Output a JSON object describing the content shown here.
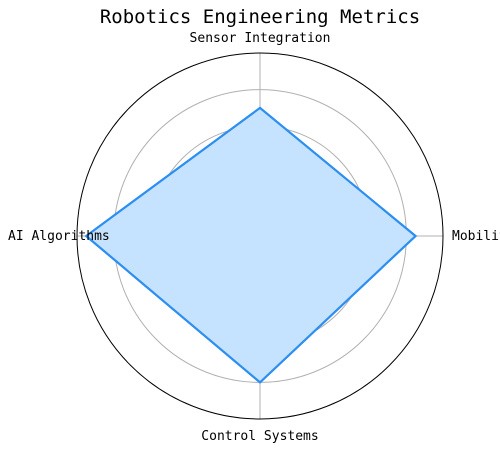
{
  "chart_data": {
    "type": "radar",
    "title": "Robotics Engineering Metrics",
    "categories": [
      "Mobility",
      "Sensor Integration",
      "AI Algorithms",
      "Control Systems"
    ],
    "values": [
      85,
      70,
      95,
      80
    ],
    "rlim": [
      0,
      100
    ],
    "grid_levels": [
      20,
      40,
      60,
      80
    ],
    "grid": true,
    "colors": {
      "line": "#2b8ef0",
      "fill": "#c5e2ff",
      "grid": "#b0b0b0",
      "frame": "#000000"
    }
  }
}
